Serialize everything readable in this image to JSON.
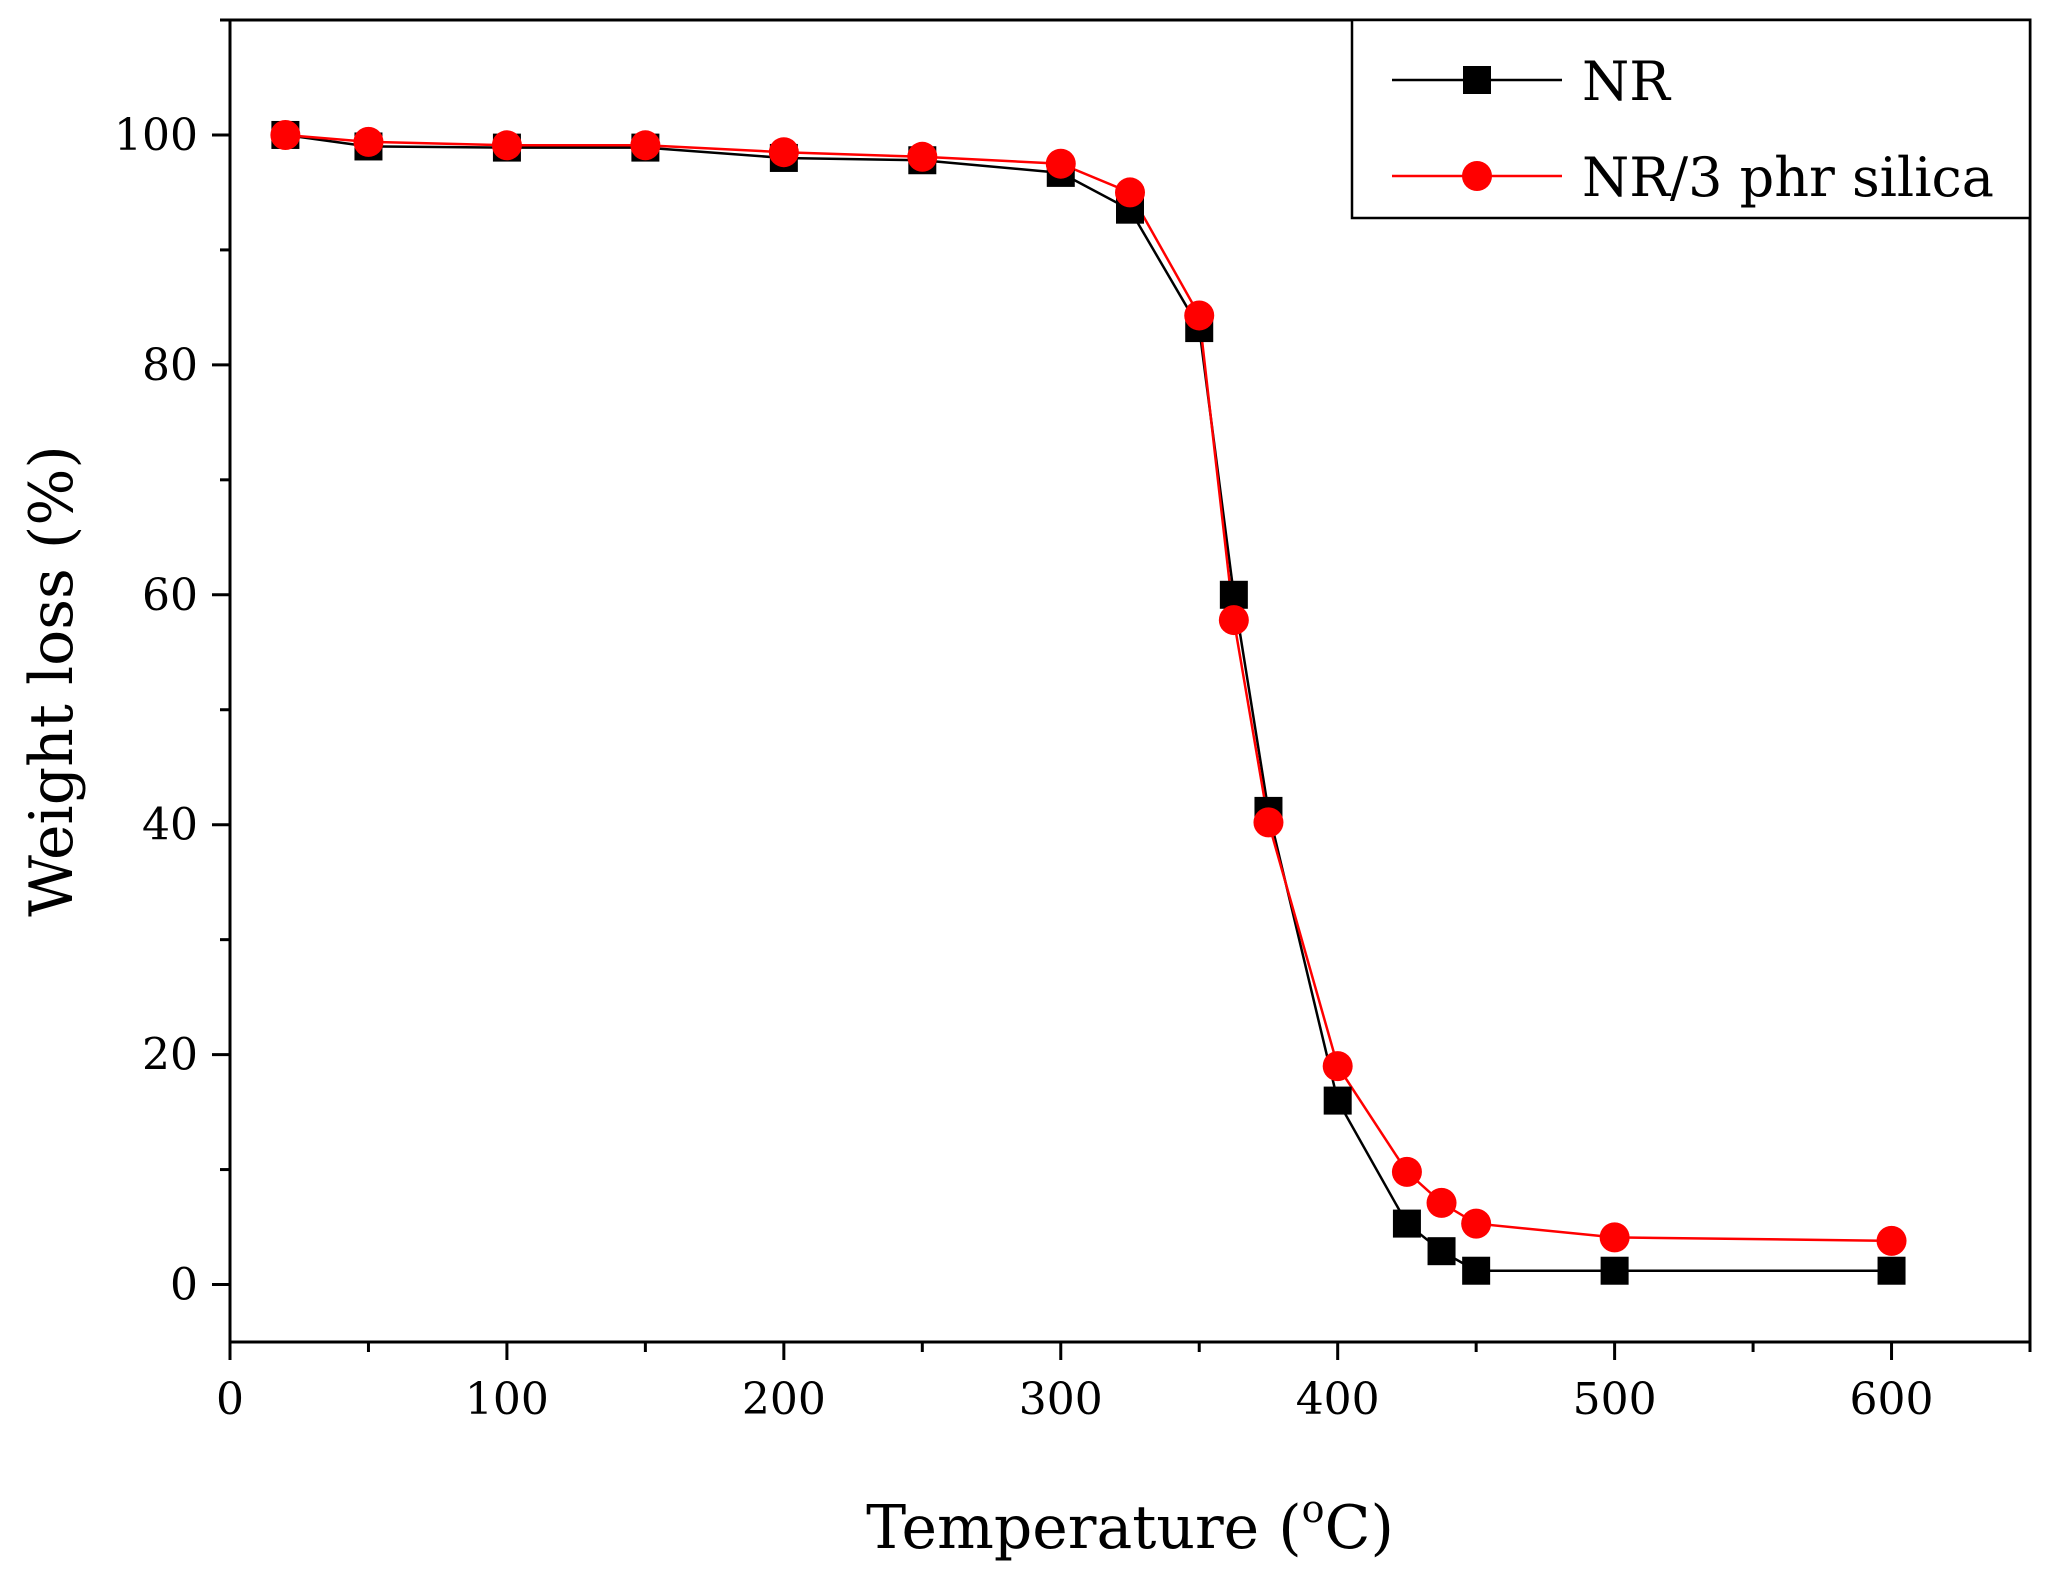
{
  "chart_data": {
    "type": "line",
    "title": "",
    "xlabel": "Temperature (",
    "xlabel_unit_sup": "o",
    "xlabel_unit": "C)",
    "ylabel": "Weight loss (%)",
    "xlim": [
      0,
      650
    ],
    "ylim": [
      -5,
      110
    ],
    "x_ticks": [
      0,
      100,
      200,
      300,
      400,
      500,
      600
    ],
    "y_ticks": [
      0,
      20,
      40,
      60,
      80,
      100
    ],
    "x_tick_labels": [
      "0",
      "100",
      "200",
      "300",
      "400",
      "500",
      "600"
    ],
    "y_tick_labels": [
      "0",
      "20",
      "40",
      "60",
      "80",
      "100"
    ],
    "x_minor_ticks": [
      50,
      150,
      250,
      350,
      450,
      550,
      650
    ],
    "y_minor_ticks": [
      10,
      30,
      50,
      70,
      90,
      110
    ],
    "grid": false,
    "legend_position": "top-right",
    "series": [
      {
        "name": "NR",
        "color": "#000000",
        "marker": "square",
        "x": [
          20,
          50,
          100,
          150,
          200,
          250,
          300,
          325,
          350,
          362.5,
          375,
          400,
          425,
          437.5,
          450,
          500,
          600
        ],
        "y": [
          100,
          99,
          98.9,
          98.9,
          98,
          97.8,
          96.7,
          93.5,
          83.2,
          60,
          41.2,
          16,
          5.3,
          2.9,
          1.2,
          1.2,
          1.2
        ]
      },
      {
        "name": "NR/3 phr silica",
        "color": "#ff0000",
        "marker": "circle",
        "x": [
          20,
          50,
          100,
          150,
          200,
          250,
          300,
          325,
          350,
          362.5,
          375,
          400,
          425,
          437.5,
          450,
          500,
          600
        ],
        "y": [
          100,
          99.4,
          99.1,
          99.1,
          98.5,
          98.1,
          97.5,
          95,
          84.3,
          57.8,
          40.2,
          19,
          9.8,
          7.1,
          5.3,
          4.1,
          3.8
        ]
      }
    ]
  }
}
